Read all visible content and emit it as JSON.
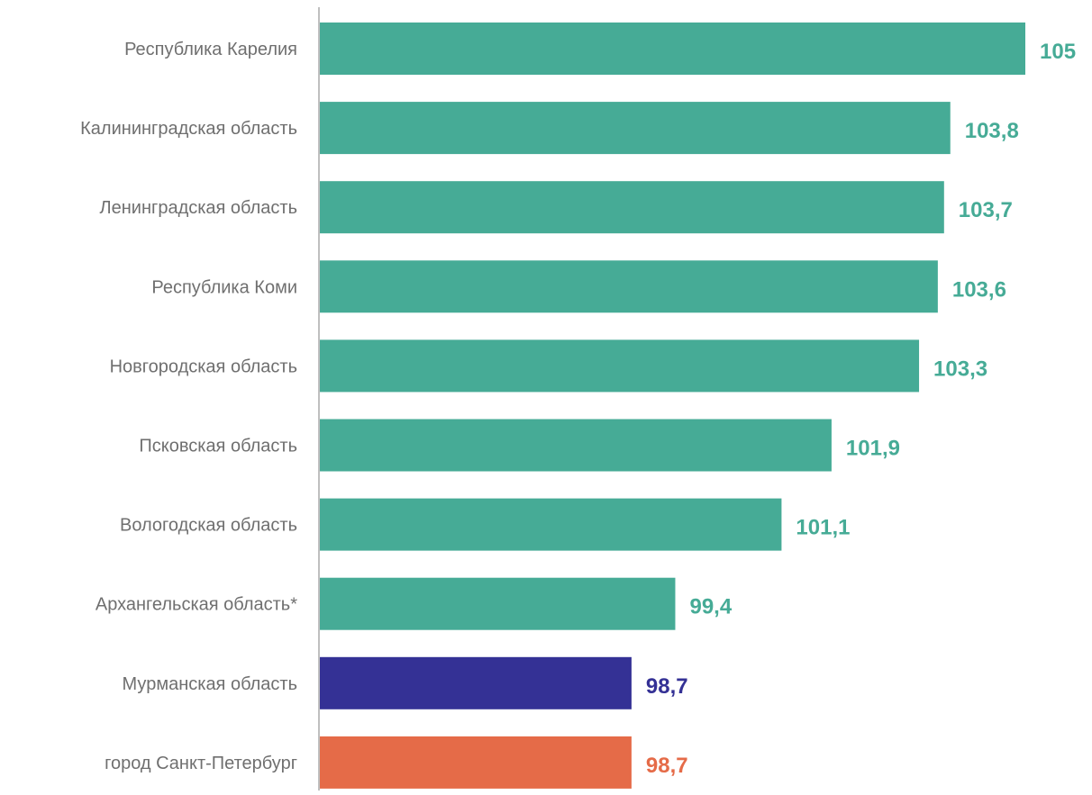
{
  "chart_data": {
    "type": "bar",
    "orientation": "horizontal",
    "categories": [
      "Республика Карелия",
      "Калининградская область",
      "Ленинградская область",
      "Республика Коми",
      "Новгородская область",
      "Псковская область",
      "Вологодская область",
      "Архангельская область*",
      "Мурманская область",
      "город Санкт-Петербург"
    ],
    "values": [
      105,
      103.8,
      103.7,
      103.6,
      103.3,
      101.9,
      101.1,
      99.4,
      98.7,
      98.7
    ],
    "value_labels": [
      "105",
      "103,8",
      "103,7",
      "103,6",
      "103,3",
      "101,9",
      "101,1",
      "99,4",
      "98,7",
      "98,7"
    ],
    "bar_colors": [
      "#46ab96",
      "#46ab96",
      "#46ab96",
      "#46ab96",
      "#46ab96",
      "#46ab96",
      "#46ab96",
      "#46ab96",
      "#343195",
      "#e56b48"
    ],
    "title": "",
    "xlabel": "",
    "ylabel": "",
    "xlim": [
      93.7,
      105
    ],
    "grid": false,
    "legend": "none",
    "colors": {
      "category_text": "#6f6f6f",
      "axis_line": "#bfbfbf"
    }
  }
}
